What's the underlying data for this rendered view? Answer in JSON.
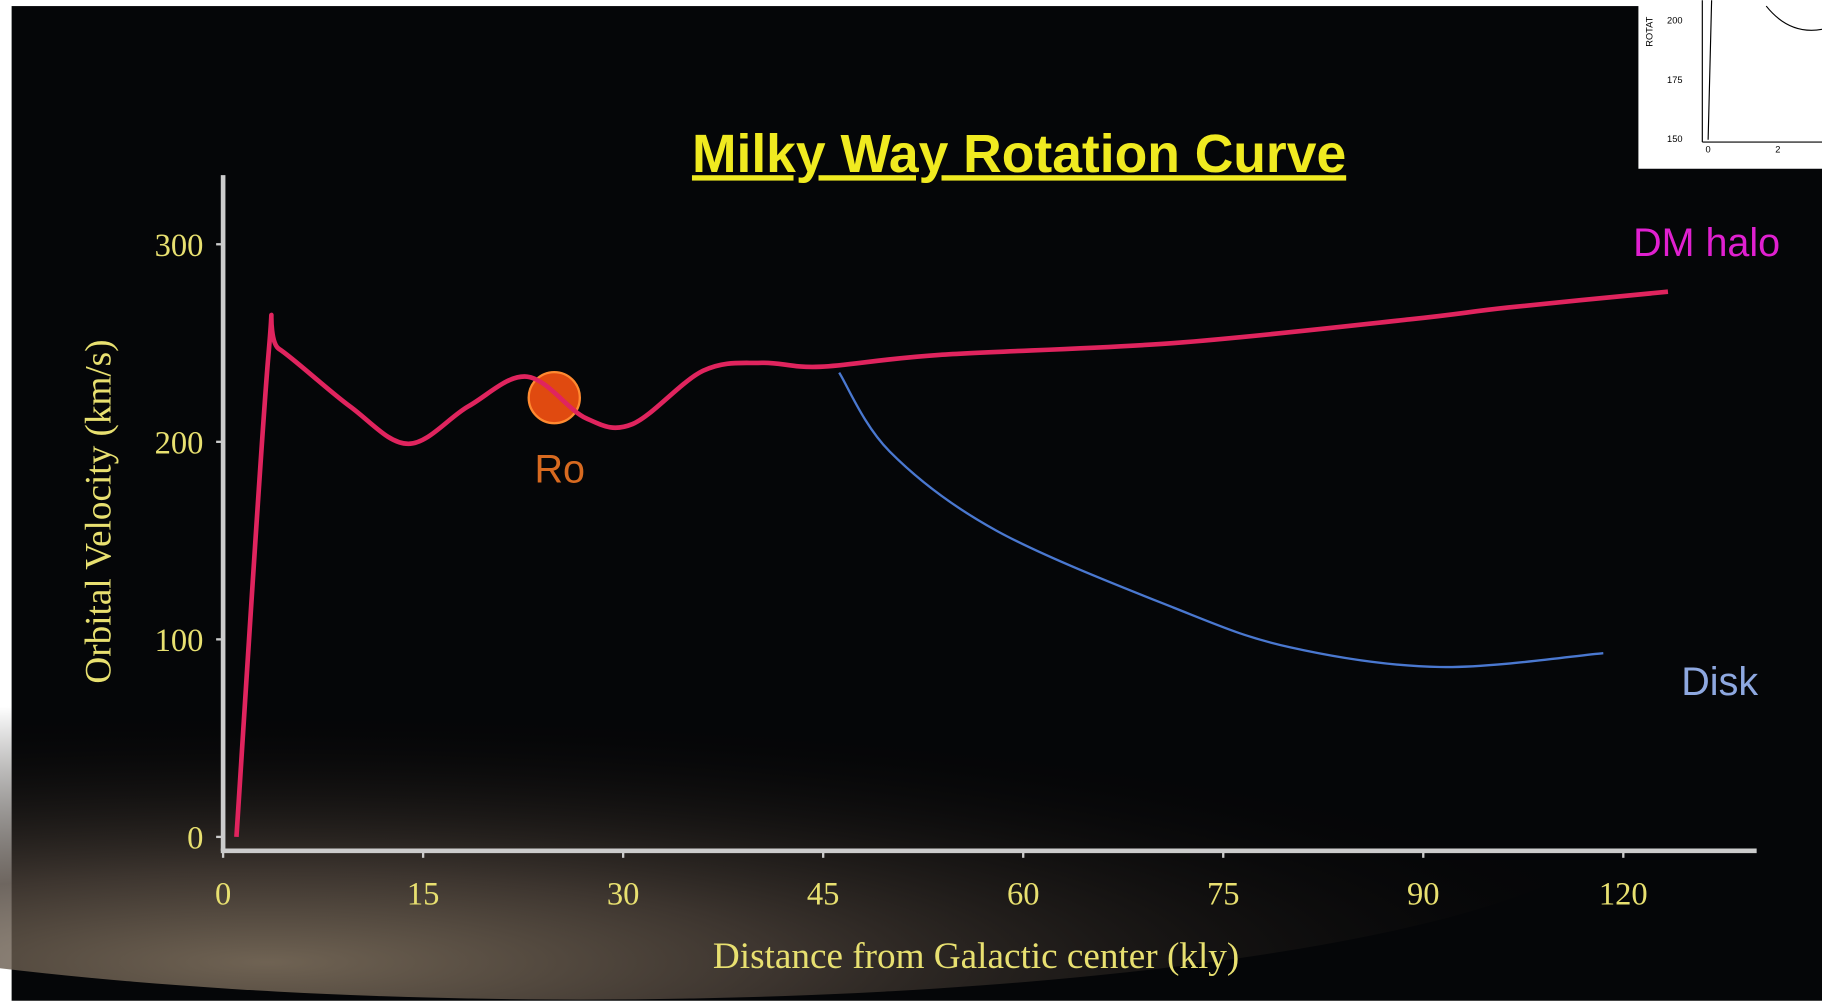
{
  "chart_data": {
    "type": "line",
    "title": "Milky Way Rotation Curve",
    "x_label": "Distance from Galactic center (kly)",
    "y_label": "Orbital Velocity (km/s)",
    "xlim": [
      0,
      140
    ],
    "xticks": [
      0,
      15,
      30,
      45,
      60,
      75,
      90,
      120
    ],
    "ylim": [
      0,
      335
    ],
    "yticks": [
      0,
      100,
      200,
      300
    ],
    "annotation": "Ro",
    "series": [
      {
        "name": "DM halo",
        "color": "#e0245e",
        "label_color": "#e020d0",
        "x": [
          1,
          3.4,
          4.2,
          9.5,
          13.9,
          18.4,
          22.8,
          27.2,
          30.7,
          36,
          40.4,
          44.8,
          53.7,
          71.3,
          89,
          102.8,
          126.7
        ],
        "values": [
          0,
          244,
          247,
          218,
          199,
          218,
          233,
          212,
          209,
          236,
          240,
          238,
          244,
          250,
          262,
          268,
          276
        ]
      },
      {
        "name": "Disk",
        "color": "#4a78d0",
        "label_color": "#8ea8e0",
        "x": [
          46.2,
          50,
          58,
          71.3,
          80,
          92.5,
          117
        ],
        "values": [
          235,
          195,
          155,
          116,
          96,
          86,
          93
        ]
      }
    ]
  },
  "inset": {
    "yticks": [
      "200",
      "175",
      "150"
    ],
    "xticks": [
      "0",
      "2"
    ],
    "y_label": "ROTAT"
  }
}
